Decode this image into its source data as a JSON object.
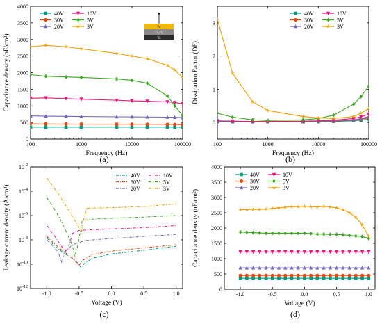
{
  "charts": [
    {
      "id": "a",
      "type": "line",
      "caption": "(a)",
      "xlabel": "Frequency (Hz)",
      "ylabel": "Capacitance density (nF/cm²)",
      "xscale": "log",
      "xlim": [
        100,
        100000
      ],
      "ylim": [
        0,
        4000
      ],
      "xticks": [
        100,
        1000,
        10000,
        100000
      ],
      "xtick_labels": [
        "100",
        "1000",
        "10000",
        "100000"
      ],
      "yticks": [
        0,
        500,
        1000,
        1500,
        2000,
        2500,
        3000,
        3500,
        4000
      ],
      "ytick_labels": [
        "0",
        "500",
        "1000",
        "1500",
        "2000",
        "2500",
        "3000",
        "3500",
        "4000"
      ],
      "legend": "top-left, two columns",
      "inset_layers": [
        "Al",
        "Ta₂O₅",
        "Ta"
      ],
      "x": [
        100,
        200,
        500,
        1000,
        5000,
        10000,
        20000,
        50000,
        70000,
        100000
      ],
      "series": [
        {
          "name": "40V",
          "color": "#009a7e",
          "marker": "square",
          "values": [
            360,
            360,
            360,
            360,
            360,
            360,
            360,
            360,
            360,
            358
          ]
        },
        {
          "name": "30V",
          "color": "#e8470c",
          "marker": "circle",
          "values": [
            460,
            455,
            452,
            450,
            448,
            446,
            445,
            443,
            440,
            435
          ]
        },
        {
          "name": "20V",
          "color": "#7565b4",
          "marker": "triangle-up",
          "values": [
            700,
            690,
            685,
            680,
            670,
            668,
            665,
            660,
            655,
            648
          ]
        },
        {
          "name": "10V",
          "color": "#e6167a",
          "marker": "triangle-down",
          "values": [
            1230,
            1240,
            1220,
            1200,
            1170,
            1150,
            1140,
            1120,
            1100,
            1060
          ]
        },
        {
          "name": "5V",
          "color": "#3aa51e",
          "marker": "diamond",
          "values": [
            1940,
            1890,
            1870,
            1855,
            1810,
            1770,
            1680,
            1300,
            1000,
            700
          ]
        },
        {
          "name": "3V",
          "color": "#f0a000",
          "marker": "star",
          "values": [
            2780,
            2820,
            2780,
            2720,
            2580,
            2500,
            2420,
            2220,
            2080,
            1850
          ]
        }
      ]
    },
    {
      "id": "b",
      "type": "line",
      "caption": "(b)",
      "xlabel": "Frequency (Hz)",
      "ylabel": "Dissipation Factor (DF)",
      "xscale": "log",
      "xlim": [
        100,
        100000
      ],
      "ylim": [
        -0.5,
        3.5
      ],
      "xticks": [
        100,
        1000,
        10000,
        100000
      ],
      "xtick_labels": [
        "100",
        "1000",
        "10000",
        "100000"
      ],
      "yticks": [
        0,
        1,
        2,
        3
      ],
      "ytick_labels": [
        "0",
        "1",
        "2",
        "3"
      ],
      "legend": "top-right, two columns",
      "x": [
        100,
        200,
        500,
        1000,
        5000,
        10000,
        20000,
        50000,
        70000,
        100000
      ],
      "series": [
        {
          "name": "40V",
          "color": "#009a7e",
          "marker": "square",
          "values": [
            0.02,
            0.02,
            0.02,
            0.02,
            0.02,
            0.02,
            0.03,
            0.05,
            0.07,
            0.1
          ]
        },
        {
          "name": "30V",
          "color": "#e8470c",
          "marker": "circle",
          "values": [
            0.03,
            0.03,
            0.02,
            0.02,
            0.02,
            0.03,
            0.04,
            0.07,
            0.1,
            0.14
          ]
        },
        {
          "name": "20V",
          "color": "#7565b4",
          "marker": "triangle-up",
          "values": [
            0.03,
            0.03,
            0.03,
            0.03,
            0.03,
            0.04,
            0.05,
            0.08,
            0.12,
            0.18
          ]
        },
        {
          "name": "10V",
          "color": "#e6167a",
          "marker": "triangle-down",
          "values": [
            0.05,
            0.04,
            0.03,
            0.03,
            0.04,
            0.05,
            0.07,
            0.12,
            0.17,
            0.25
          ]
        },
        {
          "name": "5V",
          "color": "#3aa51e",
          "marker": "diamond",
          "values": [
            0.28,
            0.16,
            0.08,
            0.06,
            0.08,
            0.12,
            0.22,
            0.55,
            0.78,
            1.1
          ]
        },
        {
          "name": "3V",
          "color": "#f0a000",
          "marker": "star",
          "values": [
            3.1,
            1.48,
            0.62,
            0.36,
            0.18,
            0.14,
            0.12,
            0.18,
            0.28,
            0.42
          ]
        }
      ]
    },
    {
      "id": "c",
      "type": "line",
      "caption": "(c)",
      "xlabel": "Voltage (V)",
      "ylabel": "Leakage current density (A/cm²)",
      "yscale": "log",
      "xlim": [
        -1.25,
        1.1
      ],
      "ylim": [
        1e-12,
        0.01
      ],
      "xticks": [
        -1.0,
        -0.5,
        0.0,
        0.5,
        1.0
      ],
      "xtick_labels": [
        "-1.0",
        "-0.5",
        "0.0",
        "0.5",
        "1.0"
      ],
      "yticks": [
        1e-12,
        1e-10,
        1e-08,
        1e-06,
        0.0001,
        0.01
      ],
      "ytick_labels": [
        {
          "base": "10",
          "exp": "-12"
        },
        {
          "base": "10",
          "exp": "-10"
        },
        {
          "base": "10",
          "exp": "-8"
        },
        {
          "base": "10",
          "exp": "-6"
        },
        {
          "base": "10",
          "exp": "-4"
        },
        {
          "base": "10",
          "exp": "-2"
        }
      ],
      "legend": "top-right, two columns",
      "series": [
        {
          "name": "40V",
          "color": "#009a7e",
          "dash": "dash-dot",
          "points": [
            [
              -1.0,
              1.5e-08
            ],
            [
              -0.9,
              4e-09
            ],
            [
              -0.8,
              1.5e-09
            ],
            [
              -0.7,
              6e-10
            ],
            [
              -0.6,
              3e-10
            ],
            [
              -0.5,
              1e-10
            ],
            [
              -0.47,
              5e-11
            ],
            [
              -0.43,
              1e-10
            ],
            [
              -0.3,
              3e-10
            ],
            [
              0.0,
              7e-10
            ],
            [
              0.5,
              1.4e-09
            ],
            [
              1.0,
              3e-09
            ]
          ]
        },
        {
          "name": "30V",
          "color": "#e8470c",
          "dash": "dash-dot",
          "points": [
            [
              -1.0,
              2e-08
            ],
            [
              -0.9,
              6e-09
            ],
            [
              -0.8,
              2e-09
            ],
            [
              -0.7,
              8e-10
            ],
            [
              -0.6,
              3e-10
            ],
            [
              -0.53,
              1.2e-10
            ],
            [
              -0.5,
              8e-11
            ],
            [
              -0.45,
              2e-10
            ],
            [
              -0.3,
              6e-10
            ],
            [
              0.0,
              1.2e-09
            ],
            [
              0.5,
              2.2e-09
            ],
            [
              1.0,
              4e-09
            ]
          ]
        },
        {
          "name": "20V",
          "color": "#7565b4",
          "dash": "dash-dot",
          "points": [
            [
              -1.0,
              1e-08
            ],
            [
              -0.9,
              3e-09
            ],
            [
              -0.82,
              9e-10
            ],
            [
              -0.77,
              1.5e-10
            ],
            [
              -0.73,
              9e-10
            ],
            [
              -0.6,
              4e-09
            ],
            [
              -0.4,
              9e-09
            ],
            [
              0.0,
              1.3e-08
            ],
            [
              0.5,
              1.9e-08
            ],
            [
              1.0,
              2.8e-08
            ]
          ]
        },
        {
          "name": "10V",
          "color": "#e6167a",
          "dash": "dash-dot",
          "points": [
            [
              -1.0,
              1.5e-07
            ],
            [
              -0.9,
              3e-08
            ],
            [
              -0.8,
              5e-09
            ],
            [
              -0.72,
              1.2e-09
            ],
            [
              -0.67,
              2e-09
            ],
            [
              -0.6,
              3.5e-08
            ],
            [
              -0.5,
              6e-08
            ],
            [
              0.0,
              8e-08
            ],
            [
              0.5,
              1e-07
            ],
            [
              1.0,
              1.5e-07
            ]
          ]
        },
        {
          "name": "5V",
          "color": "#3aa51e",
          "dash": "dash-dot",
          "points": [
            [
              -1.0,
              3e-05
            ],
            [
              -0.9,
              5e-06
            ],
            [
              -0.8,
              6e-07
            ],
            [
              -0.7,
              5e-08
            ],
            [
              -0.6,
              3e-09
            ],
            [
              -0.57,
              4e-10
            ],
            [
              -0.53,
              2e-09
            ],
            [
              -0.45,
              4e-07
            ],
            [
              -0.3,
              5e-07
            ],
            [
              0.0,
              6e-07
            ],
            [
              0.5,
              7.5e-07
            ],
            [
              1.0,
              1e-06
            ]
          ]
        },
        {
          "name": "3V",
          "color": "#f0a000",
          "dash": "dash-dot",
          "points": [
            [
              -1.0,
              0.0012
            ],
            [
              -0.9,
              0.00025
            ],
            [
              -0.8,
              4e-05
            ],
            [
              -0.7,
              6e-06
            ],
            [
              -0.6,
              8e-07
            ],
            [
              -0.5,
              1e-07
            ],
            [
              -0.46,
              5e-08
            ],
            [
              -0.42,
              8e-07
            ],
            [
              -0.38,
              4e-06
            ],
            [
              -0.2,
              4.2e-06
            ],
            [
              0.0,
              4.5e-06
            ],
            [
              0.5,
              5.5e-06
            ],
            [
              1.0,
              9e-06
            ]
          ]
        }
      ]
    },
    {
      "id": "d",
      "type": "line",
      "caption": "(d)",
      "xlabel": "Voltage (V)",
      "ylabel": "Capacitance density (nF/cm²)",
      "xlim": [
        -1.25,
        1.1
      ],
      "ylim": [
        0,
        4000
      ],
      "xticks": [
        -1.0,
        -0.5,
        0.0,
        0.5,
        1.0
      ],
      "xtick_labels": [
        "-1.0",
        "-0.5",
        "0.0",
        "0.5",
        "1.0"
      ],
      "yticks": [
        0,
        500,
        1000,
        1500,
        2000,
        2500,
        3000,
        3500,
        4000
      ],
      "ytick_labels": [
        "0",
        "500",
        "1000",
        "1500",
        "2000",
        "2500",
        "3000",
        "3500",
        "4000"
      ],
      "legend": "top-left, two columns",
      "x": [
        -1.0,
        -0.9,
        -0.8,
        -0.7,
        -0.6,
        -0.5,
        -0.4,
        -0.3,
        -0.2,
        -0.1,
        0.0,
        0.1,
        0.2,
        0.3,
        0.4,
        0.5,
        0.6,
        0.7,
        0.8,
        0.9,
        1.0
      ],
      "series": [
        {
          "name": "40V",
          "color": "#009a7e",
          "marker": "square",
          "values": [
            360,
            360,
            360,
            360,
            360,
            360,
            360,
            360,
            360,
            360,
            360,
            360,
            360,
            360,
            360,
            360,
            360,
            360,
            360,
            360,
            360
          ]
        },
        {
          "name": "30V",
          "color": "#e8470c",
          "marker": "circle",
          "values": [
            450,
            450,
            450,
            450,
            450,
            450,
            450,
            450,
            450,
            450,
            450,
            450,
            450,
            450,
            450,
            450,
            450,
            450,
            450,
            450,
            450
          ]
        },
        {
          "name": "20V",
          "color": "#7565b4",
          "marker": "triangle-up",
          "values": [
            700,
            700,
            700,
            700,
            700,
            700,
            700,
            700,
            700,
            700,
            700,
            700,
            700,
            700,
            700,
            700,
            700,
            700,
            700,
            700,
            700
          ]
        },
        {
          "name": "10V",
          "color": "#e6167a",
          "marker": "triangle-down",
          "values": [
            1220,
            1220,
            1220,
            1220,
            1220,
            1220,
            1220,
            1220,
            1220,
            1220,
            1220,
            1220,
            1220,
            1220,
            1220,
            1220,
            1220,
            1220,
            1220,
            1220,
            1220
          ]
        },
        {
          "name": "5V",
          "color": "#3aa51e",
          "marker": "diamond",
          "values": [
            1870,
            1860,
            1850,
            1840,
            1830,
            1830,
            1830,
            1830,
            1830,
            1830,
            1830,
            1820,
            1800,
            1800,
            1790,
            1790,
            1780,
            1760,
            1740,
            1720,
            1660
          ]
        },
        {
          "name": "3V",
          "color": "#f0a000",
          "marker": "star",
          "values": [
            2600,
            2600,
            2610,
            2610,
            2620,
            2640,
            2660,
            2680,
            2700,
            2700,
            2710,
            2700,
            2690,
            2710,
            2690,
            2660,
            2600,
            2500,
            2350,
            2100,
            1730
          ]
        }
      ]
    }
  ]
}
